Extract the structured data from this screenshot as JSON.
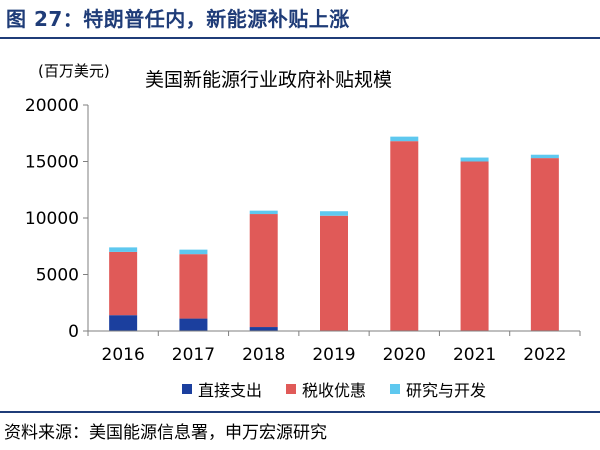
{
  "figure": {
    "title": "图 27：特朗普任内，新能源补贴上涨",
    "source": "资料来源：美国能源信息署，申万宏源研究"
  },
  "colors": {
    "title_blue": "#1f3c78",
    "direct": "#1b3f9e",
    "tax": "#e05a58",
    "rnd": "#5ec8ef"
  },
  "chart_data": {
    "type": "bar",
    "stacked": true,
    "title": "美国新能源行业政府补贴规模",
    "ylabel": "(百万美元)",
    "xlabel": "",
    "categories": [
      "2016",
      "2017",
      "2018",
      "2019",
      "2020",
      "2021",
      "2022"
    ],
    "ylim": [
      0,
      20000
    ],
    "yticks": [
      0,
      5000,
      10000,
      15000,
      20000
    ],
    "ytick_labels": [
      "0",
      "5000",
      "10000",
      "15000",
      "20000"
    ],
    "grid": false,
    "legend_position": "bottom",
    "series": [
      {
        "name": "直接支出",
        "color": "#1b3f9e",
        "values": [
          1400,
          1100,
          350,
          0,
          0,
          0,
          0
        ]
      },
      {
        "name": "税收优惠",
        "color": "#e05a58",
        "values": [
          5600,
          5700,
          10000,
          10200,
          16800,
          15000,
          15300
        ]
      },
      {
        "name": "研究与开发",
        "color": "#5ec8ef",
        "values": [
          400,
          400,
          300,
          400,
          400,
          350,
          300
        ]
      }
    ]
  }
}
